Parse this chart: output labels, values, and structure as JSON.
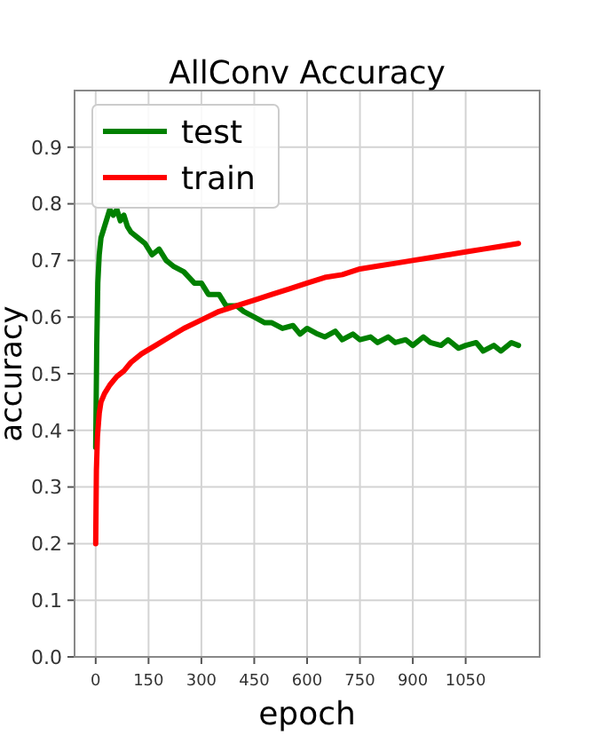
{
  "chart_data": {
    "type": "line",
    "title": "AllConv Accuracy",
    "xlabel": "epoch",
    "ylabel": "accuracy",
    "xlim": [
      -60,
      1260
    ],
    "ylim": [
      0,
      1
    ],
    "xticks": [
      0,
      150,
      300,
      450,
      600,
      750,
      900,
      1050
    ],
    "yticks": [
      {
        "value": 0,
        "label": "0.0"
      },
      0.1,
      0.2,
      0.3,
      0.4,
      0.5,
      0.6,
      0.7,
      0.8,
      0.9
    ],
    "grid": true,
    "legend": "top left",
    "line_style": "solid",
    "series": [
      {
        "name": "test",
        "color": "#008000",
        "x": [
          0,
          3,
          6,
          10,
          15,
          20,
          30,
          40,
          50,
          60,
          70,
          80,
          90,
          100,
          120,
          140,
          160,
          180,
          200,
          220,
          250,
          280,
          300,
          320,
          350,
          370,
          400,
          420,
          450,
          480,
          500,
          530,
          560,
          580,
          600,
          630,
          650,
          680,
          700,
          730,
          750,
          780,
          800,
          830,
          850,
          880,
          900,
          930,
          950,
          980,
          1000,
          1030,
          1050,
          1080,
          1100,
          1130,
          1150,
          1180,
          1200
        ],
        "values": [
          0.37,
          0.55,
          0.66,
          0.71,
          0.74,
          0.75,
          0.77,
          0.79,
          0.78,
          0.79,
          0.77,
          0.78,
          0.76,
          0.75,
          0.74,
          0.73,
          0.71,
          0.72,
          0.7,
          0.69,
          0.68,
          0.66,
          0.66,
          0.64,
          0.64,
          0.62,
          0.62,
          0.61,
          0.6,
          0.59,
          0.59,
          0.58,
          0.585,
          0.57,
          0.58,
          0.57,
          0.565,
          0.575,
          0.56,
          0.57,
          0.56,
          0.565,
          0.555,
          0.565,
          0.555,
          0.56,
          0.55,
          0.565,
          0.555,
          0.55,
          0.56,
          0.545,
          0.55,
          0.555,
          0.54,
          0.55,
          0.54,
          0.555,
          0.55
        ]
      },
      {
        "name": "train",
        "color": "#ff0000",
        "x": [
          0,
          2,
          5,
          10,
          15,
          25,
          40,
          60,
          80,
          100,
          130,
          170,
          210,
          250,
          300,
          350,
          400,
          450,
          500,
          550,
          600,
          650,
          700,
          750,
          800,
          850,
          900,
          950,
          1000,
          1050,
          1100,
          1150,
          1200
        ],
        "values": [
          0.2,
          0.33,
          0.39,
          0.43,
          0.45,
          0.465,
          0.48,
          0.495,
          0.505,
          0.52,
          0.535,
          0.55,
          0.565,
          0.58,
          0.595,
          0.61,
          0.62,
          0.63,
          0.64,
          0.65,
          0.66,
          0.67,
          0.675,
          0.685,
          0.69,
          0.695,
          0.7,
          0.705,
          0.71,
          0.715,
          0.72,
          0.725,
          0.73
        ]
      }
    ]
  }
}
